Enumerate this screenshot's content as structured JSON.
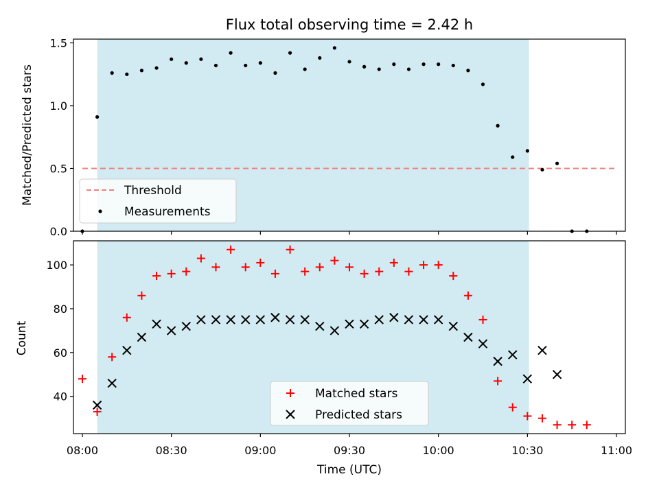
{
  "title": "Flux total observing time = 2.42 h",
  "colors": {
    "window": "#add8e6",
    "threshold": "#f08080",
    "measurement": "#000000",
    "matched": "#ff0000",
    "predicted": "#000000"
  },
  "chart_data": [
    {
      "type": "scatter",
      "title": "Flux total observing time = 2.42 h",
      "xlabel": "",
      "ylabel": "Matched/Predicted stars",
      "xlim": [
        477,
        663
      ],
      "ylim": [
        0,
        1.53
      ],
      "y_ticks": [
        0.0,
        0.5,
        1.0,
        1.5
      ],
      "y_tick_labels": [
        "0.0",
        "0.5",
        "1.0",
        "1.5"
      ],
      "x_ticks": [
        480,
        510,
        540,
        570,
        600,
        630,
        660
      ],
      "observing_window": [
        485,
        630.5
      ],
      "threshold": {
        "label": "Threshold",
        "value": 0.5,
        "x_range": [
          480,
          660
        ],
        "style": "dashed"
      },
      "legend": {
        "position": "lower-left",
        "entries": [
          "Threshold",
          "Measurements"
        ]
      },
      "series": [
        {
          "name": "Measurements",
          "x": [
            480,
            485,
            490,
            495,
            500,
            505,
            510,
            515,
            520,
            525,
            530,
            535,
            540,
            545,
            550,
            555,
            560,
            565,
            570,
            575,
            580,
            585,
            590,
            595,
            600,
            605,
            610,
            615,
            620,
            625,
            630,
            635,
            640,
            645,
            650
          ],
          "y": [
            0.0,
            0.91,
            1.26,
            1.25,
            1.28,
            1.3,
            1.37,
            1.34,
            1.37,
            1.32,
            1.42,
            1.32,
            1.34,
            1.26,
            1.42,
            1.29,
            1.38,
            1.46,
            1.35,
            1.31,
            1.29,
            1.33,
            1.29,
            1.33,
            1.33,
            1.32,
            1.28,
            1.17,
            0.84,
            0.59,
            0.64,
            0.49,
            0.54,
            0.0,
            0.0
          ]
        }
      ]
    },
    {
      "type": "scatter",
      "xlabel": "Time (UTC)",
      "ylabel": "Count",
      "xlim": [
        477,
        663
      ],
      "ylim": [
        23,
        111
      ],
      "y_ticks": [
        40,
        60,
        80,
        100
      ],
      "y_tick_labels": [
        "40",
        "60",
        "80",
        "100"
      ],
      "x_ticks": [
        480,
        510,
        540,
        570,
        600,
        630,
        660
      ],
      "x_tick_labels": [
        "08:00",
        "08:30",
        "09:00",
        "09:30",
        "10:00",
        "10:30",
        "11:00"
      ],
      "observing_window": [
        485,
        630.5
      ],
      "legend": {
        "position": "lower-center",
        "entries": [
          "Matched stars",
          "Predicted stars"
        ]
      },
      "series": [
        {
          "name": "Matched stars",
          "marker": "+",
          "x": [
            480,
            485,
            490,
            495,
            500,
            505,
            510,
            515,
            520,
            525,
            530,
            535,
            540,
            545,
            550,
            555,
            560,
            565,
            570,
            575,
            580,
            585,
            590,
            595,
            600,
            605,
            610,
            615,
            620,
            625,
            630,
            635,
            640,
            645,
            650
          ],
          "y": [
            48,
            33,
            58,
            76,
            86,
            95,
            96,
            97,
            103,
            99,
            107,
            99,
            101,
            96,
            107,
            97,
            99,
            102,
            99,
            96,
            97,
            101,
            97,
            100,
            100,
            95,
            86,
            75,
            47,
            35,
            31,
            30,
            27,
            27,
            27
          ]
        },
        {
          "name": "Predicted stars",
          "marker": "x",
          "x": [
            485,
            490,
            495,
            500,
            505,
            510,
            515,
            520,
            525,
            530,
            535,
            540,
            545,
            550,
            555,
            560,
            565,
            570,
            575,
            580,
            585,
            590,
            595,
            600,
            605,
            610,
            615,
            620,
            625,
            630,
            635,
            640
          ],
          "y": [
            36,
            46,
            61,
            67,
            73,
            70,
            72,
            75,
            75,
            75,
            75,
            75,
            76,
            75,
            75,
            72,
            70,
            73,
            73,
            75,
            76,
            75,
            75,
            75,
            72,
            67,
            64,
            56,
            59,
            48,
            61,
            50
          ]
        }
      ]
    }
  ]
}
